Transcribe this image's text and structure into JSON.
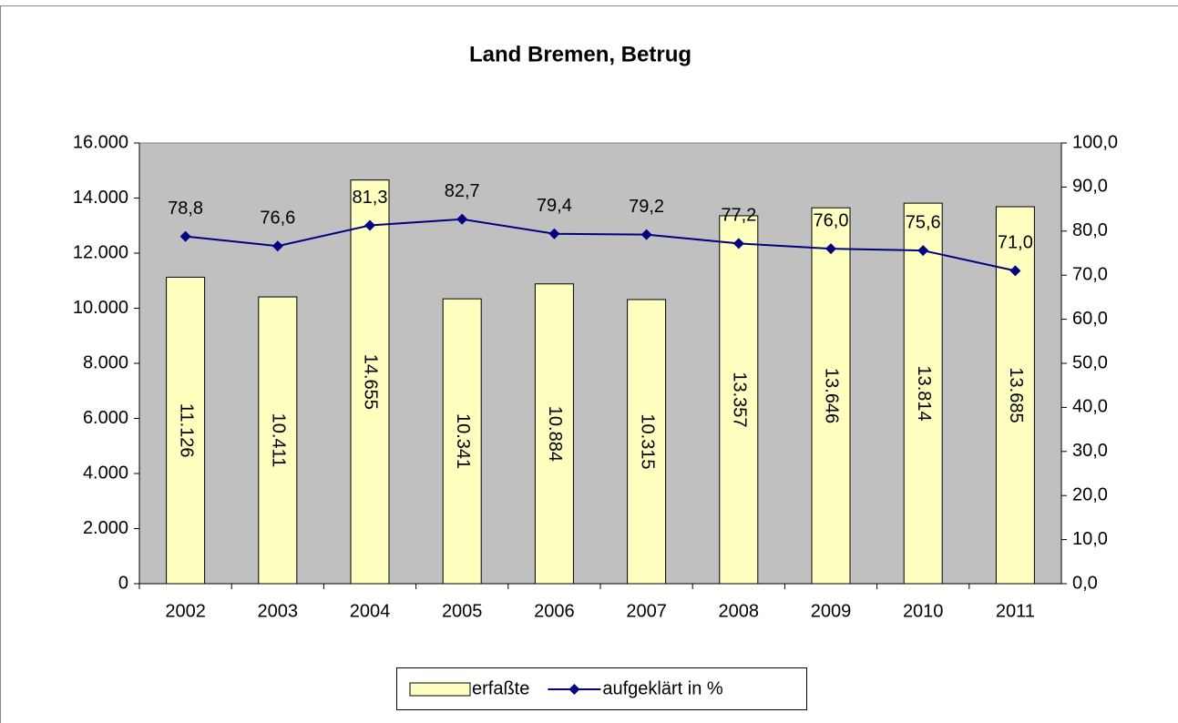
{
  "chart_data": {
    "type": "bar",
    "title": "Land Bremen, Betrug",
    "categories": [
      "2002",
      "2003",
      "2004",
      "2005",
      "2006",
      "2007",
      "2008",
      "2009",
      "2010",
      "2011"
    ],
    "series": [
      {
        "name": "erfaßte",
        "type": "bar",
        "color": "#ffffc0",
        "values": [
          11126,
          10411,
          14655,
          10341,
          10884,
          10315,
          13357,
          13646,
          13814,
          13685
        ],
        "value_labels": [
          "11.126",
          "10.411",
          "14.655",
          "10.341",
          "10.884",
          "10.315",
          "13.357",
          "13.646",
          "13.814",
          "13.685"
        ]
      },
      {
        "name": "aufgeklärt in %",
        "type": "line",
        "color": "#000080",
        "axis": "y2",
        "values": [
          78.8,
          76.6,
          81.3,
          82.7,
          79.4,
          79.2,
          77.2,
          76.0,
          75.6,
          71.0
        ],
        "value_labels": [
          "78,8",
          "76,6",
          "81,3",
          "82,7",
          "79,4",
          "79,2",
          "77,2",
          "76,0",
          "75,6",
          "71,0"
        ]
      }
    ],
    "ylim": [
      0,
      16000
    ],
    "yticks": [
      0,
      {
        "value": 2000,
        "label": "2.000"
      },
      {
        "value": 4000,
        "label": "4.000"
      },
      {
        "value": 6000,
        "label": "6.000"
      },
      {
        "value": 8000,
        "label": "8.000"
      },
      {
        "value": 10000,
        "label": "10.000"
      },
      {
        "value": 12000,
        "label": "12.000"
      },
      {
        "value": 14000,
        "label": "14.000"
      },
      {
        "value": 16000,
        "label": "16.000"
      }
    ],
    "y2lim": [
      0,
      100
    ],
    "y2ticks": [
      {
        "value": 0,
        "label": "0,0"
      },
      {
        "value": 10,
        "label": "10,0"
      },
      {
        "value": 20,
        "label": "20,0"
      },
      {
        "value": 30,
        "label": "30,0"
      },
      {
        "value": 40,
        "label": "40,0"
      },
      {
        "value": 50,
        "label": "50,0"
      },
      {
        "value": 60,
        "label": "60,0"
      },
      {
        "value": 70,
        "label": "70,0"
      },
      {
        "value": 80,
        "label": "80,0"
      },
      {
        "value": 90,
        "label": "90,0"
      },
      {
        "value": 100,
        "label": "100,0"
      }
    ],
    "plot_background": "#c0c0c0",
    "legend": "bottom"
  }
}
